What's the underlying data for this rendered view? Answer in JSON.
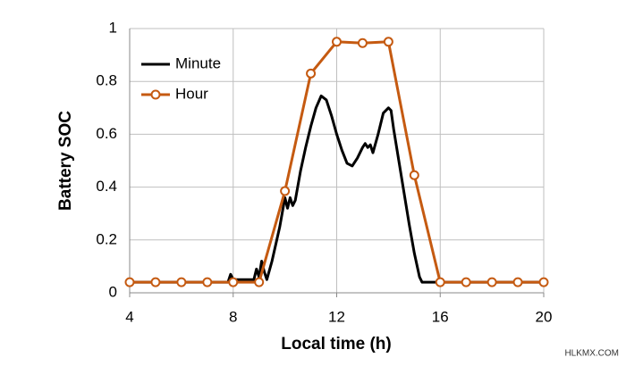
{
  "chart_data": {
    "type": "line",
    "xlabel": "Local time (h)",
    "ylabel": "Battery SOC",
    "xlim": [
      4,
      20
    ],
    "xticks": [
      4,
      8,
      12,
      16,
      20
    ],
    "ylim": [
      0,
      1
    ],
    "yticks": [
      0,
      0.2,
      0.4,
      0.6,
      0.8,
      1
    ],
    "grid": true,
    "legend": "upper left",
    "series": [
      {
        "name": "Minute",
        "color": "#000000",
        "marker": false,
        "x": [
          4,
          7.8,
          7.9,
          8.0,
          8.8,
          8.9,
          9.0,
          9.1,
          9.2,
          9.3,
          9.5,
          9.8,
          10.0,
          10.1,
          10.2,
          10.3,
          10.4,
          10.6,
          10.8,
          11.0,
          11.2,
          11.4,
          11.6,
          11.8,
          12.0,
          12.2,
          12.4,
          12.6,
          12.8,
          13.0,
          13.1,
          13.2,
          13.3,
          13.4,
          13.6,
          13.8,
          14.0,
          14.1,
          14.2,
          14.4,
          14.6,
          14.8,
          15.0,
          15.2,
          15.3,
          16,
          20
        ],
        "values": [
          0.04,
          0.04,
          0.07,
          0.05,
          0.05,
          0.09,
          0.06,
          0.12,
          0.08,
          0.05,
          0.12,
          0.25,
          0.36,
          0.32,
          0.36,
          0.33,
          0.35,
          0.46,
          0.55,
          0.63,
          0.7,
          0.745,
          0.73,
          0.67,
          0.6,
          0.54,
          0.49,
          0.48,
          0.51,
          0.55,
          0.565,
          0.55,
          0.56,
          0.53,
          0.6,
          0.68,
          0.7,
          0.69,
          0.62,
          0.5,
          0.38,
          0.26,
          0.15,
          0.06,
          0.04,
          0.04,
          0.04
        ]
      },
      {
        "name": "Hour",
        "color": "#c55a11",
        "marker": true,
        "x": [
          4,
          5,
          6,
          7,
          8,
          9,
          10,
          11,
          12,
          13,
          14,
          15,
          16,
          17,
          18,
          19,
          20
        ],
        "values": [
          0.04,
          0.04,
          0.04,
          0.04,
          0.04,
          0.04,
          0.385,
          0.83,
          0.95,
          0.945,
          0.95,
          0.445,
          0.04,
          0.04,
          0.04,
          0.04,
          0.04
        ]
      }
    ]
  },
  "watermark": "HLKMX.COM"
}
